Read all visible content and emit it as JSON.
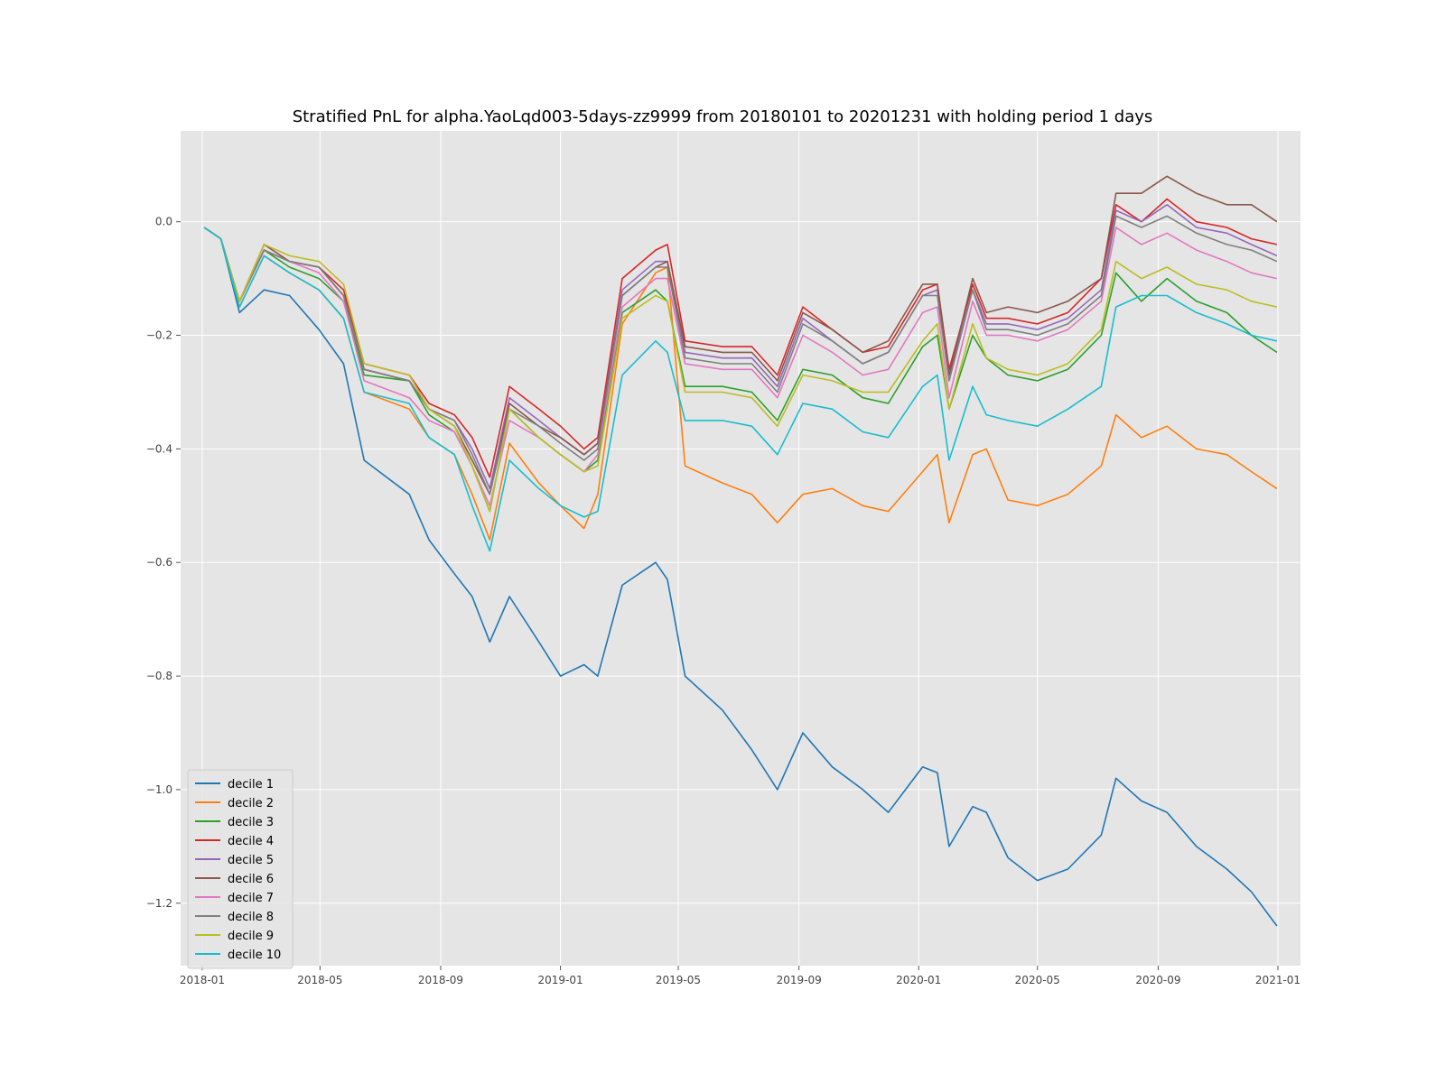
{
  "chart_data": {
    "type": "line",
    "title": "Stratified PnL for alpha.YaoLqd003-5days-zz9999 from 20180101 to 20201231 with holding period 1 days",
    "xlabel": "",
    "ylabel": "",
    "xlim": [
      "2017-12-10",
      "2021-01-24"
    ],
    "ylim": [
      -1.31,
      0.16
    ],
    "grid": true,
    "legend_position": "lower-left",
    "x_ticks": [
      "2018-01",
      "2018-05",
      "2018-09",
      "2019-01",
      "2019-05",
      "2019-09",
      "2020-01",
      "2020-05",
      "2020-09",
      "2021-01"
    ],
    "y_ticks": [
      "0.0",
      "−0.2",
      "−0.4",
      "−0.6",
      "−0.8",
      "−1.0",
      "−1.2"
    ],
    "y_tick_values": [
      0.0,
      -0.2,
      -0.4,
      -0.6,
      -0.8,
      -1.0,
      -1.2
    ],
    "x": [
      "2018-01-03",
      "2018-01-20",
      "2018-02-08",
      "2018-03-05",
      "2018-03-31",
      "2018-04-30",
      "2018-05-25",
      "2018-06-15",
      "2018-07-31",
      "2018-08-20",
      "2018-09-15",
      "2018-10-03",
      "2018-10-21",
      "2018-11-10",
      "2018-12-10",
      "2019-01-01",
      "2019-01-25",
      "2019-02-08",
      "2019-03-05",
      "2019-04-08",
      "2019-04-20",
      "2019-05-08",
      "2019-06-15",
      "2019-07-15",
      "2019-08-10",
      "2019-09-05",
      "2019-10-05",
      "2019-11-05",
      "2019-12-01",
      "2020-01-05",
      "2020-01-20",
      "2020-02-01",
      "2020-02-25",
      "2020-03-10",
      "2020-04-01",
      "2020-05-01",
      "2020-06-01",
      "2020-07-05",
      "2020-07-20",
      "2020-08-15",
      "2020-09-10",
      "2020-10-10",
      "2020-11-10",
      "2020-12-05",
      "2020-12-31"
    ],
    "series": [
      {
        "name": "decile 1",
        "color": "#1f77b4",
        "values": [
          -0.01,
          -0.03,
          -0.16,
          -0.12,
          -0.13,
          -0.19,
          -0.25,
          -0.42,
          -0.48,
          -0.56,
          -0.62,
          -0.66,
          -0.74,
          -0.66,
          -0.74,
          -0.8,
          -0.78,
          -0.8,
          -0.64,
          -0.6,
          -0.63,
          -0.8,
          -0.86,
          -0.93,
          -1.0,
          -0.9,
          -0.96,
          -1.0,
          -1.04,
          -0.96,
          -0.97,
          -1.1,
          -1.03,
          -1.04,
          -1.12,
          -1.16,
          -1.14,
          -1.08,
          -0.98,
          -1.02,
          -1.04,
          -1.1,
          -1.14,
          -1.18,
          -1.24
        ]
      },
      {
        "name": "decile 2",
        "color": "#ff7f0e",
        "values": [
          -0.01,
          -0.03,
          -0.15,
          -0.06,
          -0.09,
          -0.12,
          -0.17,
          -0.3,
          -0.33,
          -0.38,
          -0.41,
          -0.48,
          -0.56,
          -0.39,
          -0.46,
          -0.5,
          -0.54,
          -0.48,
          -0.18,
          -0.09,
          -0.08,
          -0.43,
          -0.46,
          -0.48,
          -0.53,
          -0.48,
          -0.47,
          -0.5,
          -0.51,
          -0.44,
          -0.41,
          -0.53,
          -0.41,
          -0.4,
          -0.49,
          -0.5,
          -0.48,
          -0.43,
          -0.34,
          -0.38,
          -0.36,
          -0.4,
          -0.41,
          -0.44,
          -0.47
        ]
      },
      {
        "name": "decile 3",
        "color": "#2ca02c",
        "values": [
          -0.01,
          -0.03,
          -0.14,
          -0.05,
          -0.08,
          -0.1,
          -0.14,
          -0.27,
          -0.28,
          -0.34,
          -0.37,
          -0.43,
          -0.51,
          -0.33,
          -0.38,
          -0.41,
          -0.44,
          -0.42,
          -0.16,
          -0.12,
          -0.14,
          -0.29,
          -0.29,
          -0.3,
          -0.35,
          -0.26,
          -0.27,
          -0.31,
          -0.32,
          -0.22,
          -0.2,
          -0.33,
          -0.2,
          -0.24,
          -0.27,
          -0.28,
          -0.26,
          -0.2,
          -0.09,
          -0.14,
          -0.1,
          -0.14,
          -0.16,
          -0.2,
          -0.23
        ]
      },
      {
        "name": "decile 4",
        "color": "#d62728",
        "values": [
          -0.01,
          -0.03,
          -0.14,
          -0.05,
          -0.07,
          -0.08,
          -0.12,
          -0.25,
          -0.27,
          -0.32,
          -0.34,
          -0.38,
          -0.45,
          -0.29,
          -0.33,
          -0.36,
          -0.4,
          -0.38,
          -0.1,
          -0.05,
          -0.04,
          -0.21,
          -0.22,
          -0.22,
          -0.27,
          -0.15,
          -0.19,
          -0.23,
          -0.22,
          -0.12,
          -0.11,
          -0.26,
          -0.11,
          -0.17,
          -0.17,
          -0.18,
          -0.16,
          -0.1,
          0.03,
          0.0,
          0.04,
          0.0,
          -0.01,
          -0.03,
          -0.04
        ]
      },
      {
        "name": "decile 5",
        "color": "#9467bd",
        "values": [
          -0.01,
          -0.03,
          -0.14,
          -0.05,
          -0.07,
          -0.08,
          -0.13,
          -0.26,
          -0.28,
          -0.33,
          -0.35,
          -0.4,
          -0.47,
          -0.31,
          -0.35,
          -0.38,
          -0.41,
          -0.39,
          -0.12,
          -0.07,
          -0.07,
          -0.23,
          -0.24,
          -0.24,
          -0.29,
          -0.17,
          -0.21,
          -0.25,
          -0.23,
          -0.13,
          -0.12,
          -0.27,
          -0.12,
          -0.18,
          -0.18,
          -0.19,
          -0.17,
          -0.12,
          0.02,
          0.0,
          0.03,
          -0.01,
          -0.02,
          -0.04,
          -0.06
        ]
      },
      {
        "name": "decile 6",
        "color": "#8c564b",
        "values": [
          -0.01,
          -0.03,
          -0.14,
          -0.04,
          -0.07,
          -0.08,
          -0.13,
          -0.26,
          -0.28,
          -0.33,
          -0.36,
          -0.42,
          -0.48,
          -0.32,
          -0.36,
          -0.38,
          -0.41,
          -0.39,
          -0.13,
          -0.08,
          -0.07,
          -0.22,
          -0.23,
          -0.23,
          -0.28,
          -0.16,
          -0.19,
          -0.23,
          -0.21,
          -0.11,
          -0.11,
          -0.27,
          -0.1,
          -0.16,
          -0.15,
          -0.16,
          -0.14,
          -0.1,
          0.05,
          0.05,
          0.08,
          0.05,
          0.03,
          0.03,
          0.0
        ]
      },
      {
        "name": "decile 7",
        "color": "#e377c2",
        "values": [
          -0.01,
          -0.03,
          -0.14,
          -0.05,
          -0.07,
          -0.09,
          -0.14,
          -0.28,
          -0.31,
          -0.35,
          -0.37,
          -0.43,
          -0.5,
          -0.35,
          -0.38,
          -0.41,
          -0.44,
          -0.41,
          -0.15,
          -0.1,
          -0.1,
          -0.25,
          -0.26,
          -0.26,
          -0.31,
          -0.2,
          -0.23,
          -0.27,
          -0.26,
          -0.16,
          -0.15,
          -0.31,
          -0.14,
          -0.2,
          -0.2,
          -0.21,
          -0.19,
          -0.14,
          -0.01,
          -0.04,
          -0.02,
          -0.05,
          -0.07,
          -0.09,
          -0.1
        ]
      },
      {
        "name": "decile 8",
        "color": "#7f7f7f",
        "values": [
          -0.01,
          -0.03,
          -0.14,
          -0.05,
          -0.07,
          -0.08,
          -0.13,
          -0.26,
          -0.28,
          -0.33,
          -0.35,
          -0.41,
          -0.48,
          -0.33,
          -0.36,
          -0.39,
          -0.42,
          -0.4,
          -0.13,
          -0.08,
          -0.08,
          -0.24,
          -0.25,
          -0.25,
          -0.3,
          -0.18,
          -0.21,
          -0.25,
          -0.23,
          -0.13,
          -0.13,
          -0.28,
          -0.12,
          -0.19,
          -0.19,
          -0.2,
          -0.18,
          -0.13,
          0.01,
          -0.01,
          0.01,
          -0.02,
          -0.04,
          -0.05,
          -0.07
        ]
      },
      {
        "name": "decile 9",
        "color": "#bcbd22",
        "values": [
          -0.01,
          -0.03,
          -0.14,
          -0.04,
          -0.06,
          -0.07,
          -0.11,
          -0.25,
          -0.27,
          -0.33,
          -0.36,
          -0.43,
          -0.51,
          -0.33,
          -0.38,
          -0.41,
          -0.44,
          -0.43,
          -0.17,
          -0.13,
          -0.14,
          -0.3,
          -0.3,
          -0.31,
          -0.36,
          -0.27,
          -0.28,
          -0.3,
          -0.3,
          -0.21,
          -0.18,
          -0.33,
          -0.18,
          -0.24,
          -0.26,
          -0.27,
          -0.25,
          -0.19,
          -0.07,
          -0.1,
          -0.08,
          -0.11,
          -0.12,
          -0.14,
          -0.15
        ]
      },
      {
        "name": "decile 10",
        "color": "#17becf",
        "values": [
          -0.01,
          -0.03,
          -0.15,
          -0.06,
          -0.09,
          -0.12,
          -0.17,
          -0.3,
          -0.32,
          -0.38,
          -0.41,
          -0.5,
          -0.58,
          -0.42,
          -0.47,
          -0.5,
          -0.52,
          -0.51,
          -0.27,
          -0.21,
          -0.23,
          -0.35,
          -0.35,
          -0.36,
          -0.41,
          -0.32,
          -0.33,
          -0.37,
          -0.38,
          -0.29,
          -0.27,
          -0.42,
          -0.29,
          -0.34,
          -0.35,
          -0.36,
          -0.33,
          -0.29,
          -0.15,
          -0.13,
          -0.13,
          -0.16,
          -0.18,
          -0.2,
          -0.21
        ]
      }
    ]
  }
}
